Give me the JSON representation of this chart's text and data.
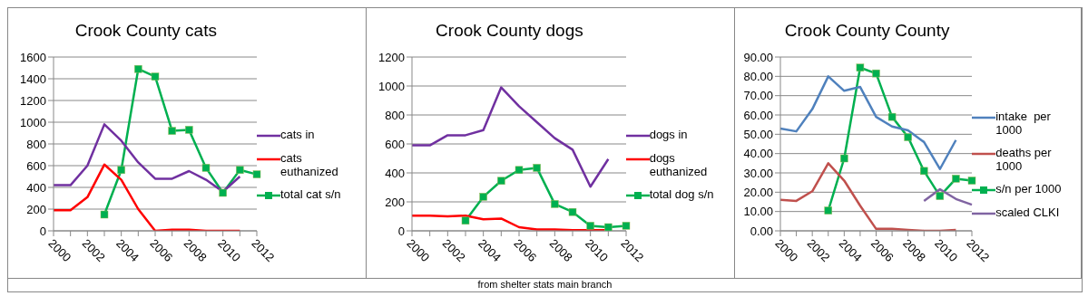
{
  "chart_data": [
    {
      "type": "line",
      "title": "Crook County cats",
      "categories": [
        "2000",
        null,
        "2002",
        null,
        "2004",
        null,
        "2006",
        null,
        "2008",
        null,
        "2010",
        null,
        "2012"
      ],
      "series": [
        {
          "name": "cats in",
          "color": "#7030a0",
          "marker": "none",
          "values": [
            420,
            420,
            600,
            980,
            830,
            630,
            480,
            480,
            550,
            470,
            360,
            500,
            null
          ]
        },
        {
          "name": "cats euthanized",
          "color": "#ff0000",
          "marker": "none",
          "values": [
            190,
            190,
            310,
            610,
            470,
            200,
            0,
            10,
            10,
            0,
            0,
            0,
            null
          ]
        },
        {
          "name": "total cat s/n",
          "color": "#00b050",
          "marker": "square",
          "values": [
            null,
            null,
            null,
            150,
            560,
            1490,
            1420,
            920,
            930,
            580,
            350,
            560,
            520
          ]
        }
      ],
      "ylim": [
        0,
        1600
      ],
      "yticks": [
        0,
        200,
        400,
        600,
        800,
        1000,
        1200,
        1400,
        1600
      ],
      "grid": "y",
      "legend": "right"
    },
    {
      "type": "line",
      "title": "Crook County dogs",
      "categories": [
        "2000",
        null,
        "2002",
        null,
        "2004",
        null,
        "2006",
        null,
        "2008",
        null,
        "2010",
        null,
        "2012"
      ],
      "series": [
        {
          "name": "dogs in",
          "color": "#7030a0",
          "marker": "none",
          "values": [
            590,
            590,
            660,
            660,
            695,
            990,
            860,
            750,
            640,
            560,
            305,
            495,
            null
          ]
        },
        {
          "name": "dogs euthanized",
          "color": "#ff0000",
          "marker": "none",
          "values": [
            105,
            105,
            100,
            105,
            80,
            85,
            25,
            10,
            10,
            5,
            5,
            5,
            null
          ]
        },
        {
          "name": "total dog s/n",
          "color": "#00b050",
          "marker": "square",
          "values": [
            null,
            null,
            null,
            70,
            235,
            345,
            420,
            435,
            185,
            130,
            35,
            25,
            35
          ]
        }
      ],
      "ylim": [
        0,
        1200
      ],
      "yticks": [
        0,
        200,
        400,
        600,
        800,
        1000,
        1200
      ],
      "grid": "y",
      "legend": "right",
      "annotations": [
        "from shelter stats main branch"
      ]
    },
    {
      "type": "line",
      "title": "Crook County County",
      "categories": [
        "2000",
        null,
        "2002",
        null,
        "2004",
        null,
        "2006",
        null,
        "2008",
        null,
        "2010",
        null,
        "2012"
      ],
      "series": [
        {
          "name": "intake  per 1000",
          "color": "#4f81bd",
          "marker": "none",
          "values": [
            53,
            51.5,
            63,
            80,
            72.5,
            74.5,
            59,
            54,
            52,
            46,
            32,
            47,
            null
          ]
        },
        {
          "name": "deaths per 1000",
          "color": "#c0504d",
          "marker": "none",
          "values": [
            16,
            15.5,
            20.5,
            35,
            26,
            13,
            1,
            1,
            0.5,
            0,
            0,
            0.5,
            null
          ]
        },
        {
          "name": "s/n per 1000",
          "color": "#00b050",
          "marker": "square",
          "values": [
            null,
            null,
            null,
            10.5,
            37.5,
            84.5,
            81.5,
            59,
            48.5,
            31,
            18,
            27,
            26
          ]
        },
        {
          "name": "scaled CLKI",
          "color": "#8064a2",
          "marker": "none",
          "values": [
            null,
            null,
            null,
            null,
            null,
            null,
            null,
            null,
            null,
            15.5,
            21.5,
            16.5,
            13.5
          ]
        }
      ],
      "ylim": [
        0,
        90
      ],
      "yticks": [
        {
          "value": 0,
          "label": "0.00"
        },
        {
          "value": 10,
          "label": "10.00"
        },
        {
          "value": 20,
          "label": "20.00"
        },
        {
          "value": 30,
          "label": "30.00"
        },
        {
          "value": 40,
          "label": "40.00"
        },
        {
          "value": 50,
          "label": "50.00"
        },
        {
          "value": 60,
          "label": "60.00"
        },
        {
          "value": 70,
          "label": "70.00"
        },
        {
          "value": 80,
          "label": "80.00"
        },
        {
          "value": 90,
          "label": "90.00"
        }
      ],
      "grid": "y",
      "legend": "right"
    }
  ]
}
